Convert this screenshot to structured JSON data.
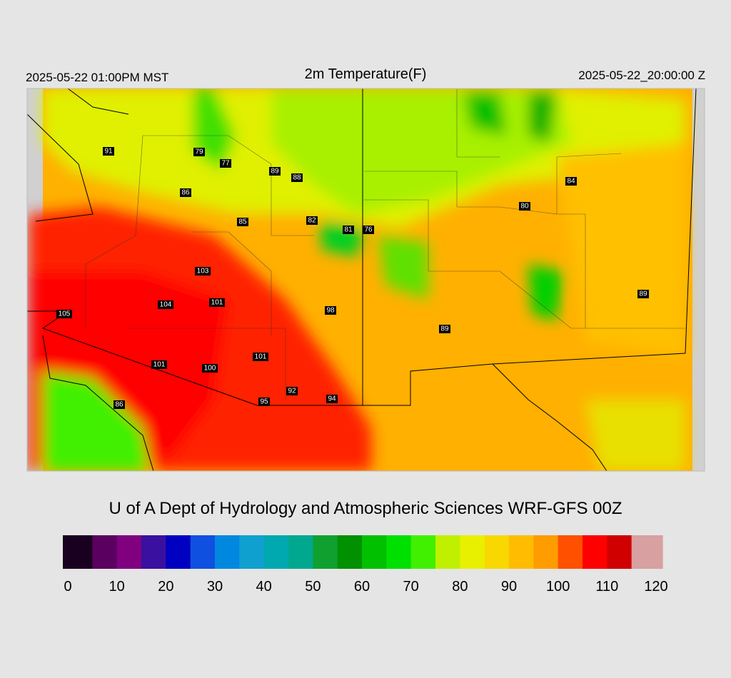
{
  "header": {
    "valid_local": "2025-05-22 01:00PM MST",
    "title": "2m Temperature(F)",
    "valid_utc": "2025-05-22_20:00:00 Z"
  },
  "stations": [
    91,
    79,
    77,
    89,
    88,
    86,
    85,
    82,
    81,
    76,
    84,
    80,
    103,
    104,
    101,
    98,
    105,
    89,
    89,
    101,
    101,
    100,
    92,
    95,
    94,
    86
  ],
  "footer": {
    "credit": "U of A Dept of Hydrology and Atmospheric Sciences WRF-GFS 00Z"
  },
  "colorbar": {
    "lim": [
      0,
      120
    ],
    "ticks": [
      0,
      10,
      20,
      30,
      40,
      50,
      60,
      70,
      80,
      90,
      100,
      110,
      120
    ],
    "colors": [
      "#1a0020",
      "#5a0060",
      "#800080",
      "#3a10a0",
      "#0000c0",
      "#1050e0",
      "#0088e0",
      "#10a0d0",
      "#00a8b0",
      "#00a890",
      "#10a030",
      "#009000",
      "#00c000",
      "#00e000",
      "#40f000",
      "#c0f000",
      "#e8f000",
      "#f8d800",
      "#ffbc00",
      "#ff9c00",
      "#ff5000",
      "#ff0000",
      "#d00000",
      "#d8a0a0"
    ]
  }
}
